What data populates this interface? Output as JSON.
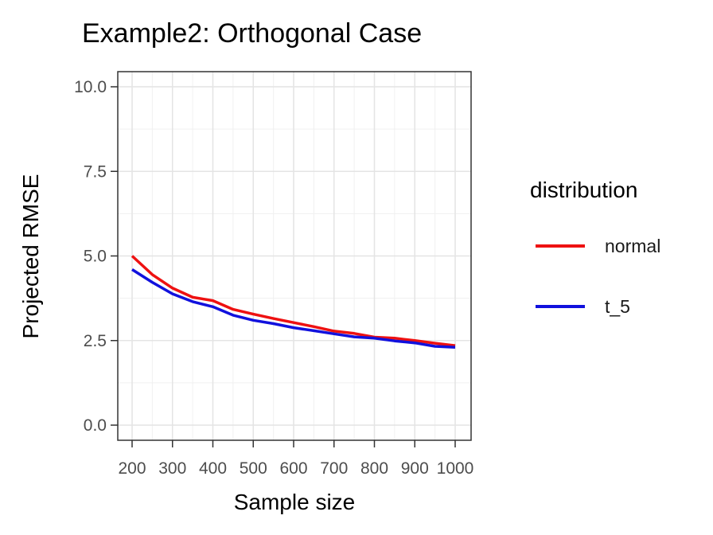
{
  "chart_data": {
    "type": "line",
    "title": "Example2: Orthogonal Case",
    "xlabel": "Sample size",
    "ylabel": "Projected RMSE",
    "xlim": [
      200,
      1000
    ],
    "ylim": [
      0,
      10
    ],
    "x_ticks": [
      200,
      300,
      400,
      500,
      600,
      700,
      800,
      900,
      1000
    ],
    "y_ticks": [
      "0.0",
      "2.5",
      "5.0",
      "7.5",
      "10.0"
    ],
    "grid": true,
    "legend": {
      "title": "distribution",
      "position": "right"
    },
    "x": [
      200,
      250,
      300,
      350,
      400,
      450,
      500,
      550,
      600,
      650,
      700,
      750,
      800,
      850,
      900,
      950,
      1000
    ],
    "series": [
      {
        "name": "normal",
        "color": "#ee1111",
        "values": [
          5.0,
          4.45,
          4.05,
          3.78,
          3.68,
          3.42,
          3.28,
          3.15,
          3.03,
          2.91,
          2.78,
          2.71,
          2.6,
          2.57,
          2.5,
          2.42,
          2.35
        ]
      },
      {
        "name": "t_5",
        "color": "#1111dd",
        "values": [
          4.6,
          4.22,
          3.88,
          3.65,
          3.5,
          3.25,
          3.1,
          3.0,
          2.88,
          2.79,
          2.7,
          2.61,
          2.57,
          2.49,
          2.43,
          2.33,
          2.3
        ]
      }
    ]
  }
}
